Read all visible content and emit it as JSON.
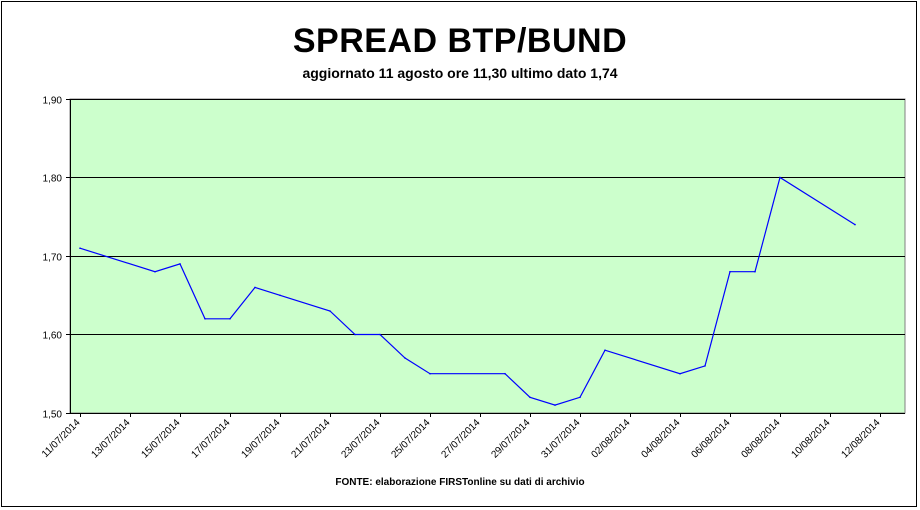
{
  "chart_data": {
    "type": "line",
    "title": "SPREAD BTP/BUND",
    "subtitle": "aggiornato 11 agosto ore 11,30 ultimo dato 1,74",
    "source": "FONTE: elaborazione FIRSTonline su dati di archivio",
    "ylim": [
      1.5,
      1.9
    ],
    "yticks": [
      "1,50",
      "1,60",
      "1,70",
      "1,80",
      "1,90"
    ],
    "xticks": [
      "11/07/2014",
      "13/07/2014",
      "15/07/2014",
      "17/07/2014",
      "19/07/2014",
      "21/07/2014",
      "23/07/2014",
      "25/07/2014",
      "27/07/2014",
      "29/07/2014",
      "31/07/2014",
      "02/08/2014",
      "04/08/2014",
      "06/08/2014",
      "08/08/2014",
      "10/08/2014",
      "12/08/2014"
    ],
    "grid": true,
    "plot_background": "#ccffcc",
    "series": [
      {
        "color": "#0000ff",
        "x": [
          "11/07/2014",
          "14/07/2014",
          "15/07/2014",
          "16/07/2014",
          "17/07/2014",
          "18/07/2014",
          "19/07/2014",
          "21/07/2014",
          "22/07/2014",
          "23/07/2014",
          "24/07/2014",
          "25/07/2014",
          "28/07/2014",
          "29/07/2014",
          "30/07/2014",
          "31/07/2014",
          "01/08/2014",
          "04/08/2014",
          "05/08/2014",
          "06/08/2014",
          "07/08/2014",
          "08/08/2014",
          "11/08/2014"
        ],
        "values": [
          1.71,
          1.68,
          1.69,
          1.62,
          1.62,
          1.66,
          1.65,
          1.63,
          1.6,
          1.6,
          1.57,
          1.55,
          1.55,
          1.52,
          1.51,
          1.52,
          1.58,
          1.55,
          1.56,
          1.68,
          1.68,
          1.8,
          1.74
        ]
      }
    ]
  }
}
